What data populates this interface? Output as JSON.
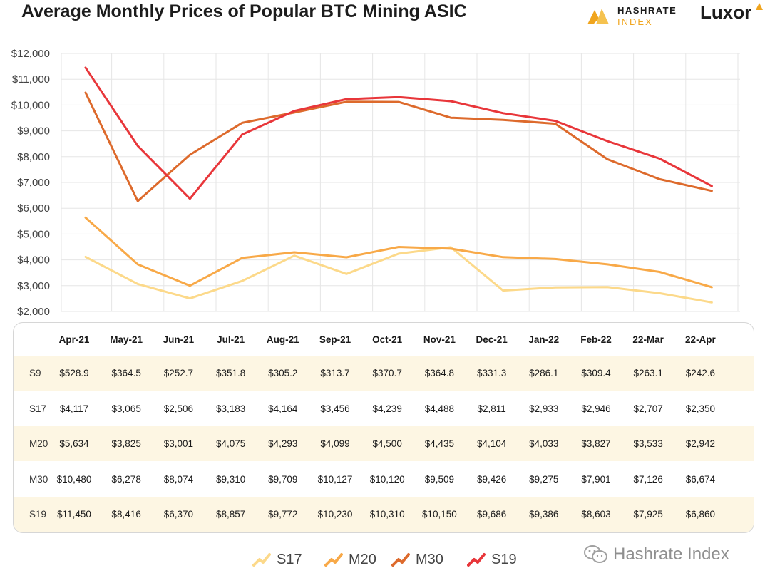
{
  "header": {
    "title": "Average Monthly Prices of Popular BTC Mining ASIC",
    "brand_hashrate_line1": "HASHRATE",
    "brand_hashrate_line2": "INDEX",
    "brand_luxor": "Luxor"
  },
  "colors": {
    "S17": "#fcd98a",
    "M20": "#f8a948",
    "M30": "#dd6a2c",
    "S19": "#e8363a",
    "grid": "#e6e6e6",
    "row_shade": "#fdf6e3"
  },
  "chart_data": {
    "type": "line",
    "title": "Average Monthly Prices of Popular BTC Mining ASIC",
    "xlabel": "",
    "ylabel": "",
    "ylim": [
      2000,
      12000
    ],
    "yticks": [
      2000,
      3000,
      4000,
      5000,
      6000,
      7000,
      8000,
      9000,
      10000,
      11000,
      12000
    ],
    "ytick_labels": [
      "$2,000",
      "$3,000",
      "$4,000",
      "$5,000",
      "$6,000",
      "$7,000",
      "$8,000",
      "$9,000",
      "$10,000",
      "$11,000",
      "$12,000"
    ],
    "grid": true,
    "legend_position": "bottom-center",
    "categories": [
      "Apr-21",
      "May-21",
      "Jun-21",
      "Jul-21",
      "Aug-21",
      "Sep-21",
      "Oct-21",
      "Nov-21",
      "Dec-21",
      "Jan-22",
      "Feb-22",
      "22-Mar",
      "22-Apr"
    ],
    "series": [
      {
        "name": "S17",
        "values": [
          4117,
          3065,
          2506,
          3183,
          4164,
          3456,
          4239,
          4488,
          2811,
          2933,
          2946,
          2707,
          2350
        ]
      },
      {
        "name": "M20",
        "values": [
          5634,
          3825,
          3001,
          4075,
          4293,
          4099,
          4500,
          4435,
          4104,
          4033,
          3827,
          3533,
          2942
        ]
      },
      {
        "name": "M30",
        "values": [
          10480,
          6278,
          8074,
          9310,
          9709,
          10127,
          10120,
          9509,
          9426,
          9275,
          7901,
          7126,
          6674
        ]
      },
      {
        "name": "S19",
        "values": [
          11450,
          8416,
          6370,
          8857,
          9772,
          10230,
          10310,
          10150,
          9686,
          9386,
          8603,
          7925,
          6860
        ]
      }
    ]
  },
  "table": {
    "columns": [
      "Apr-21",
      "May-21",
      "Jun-21",
      "Jul-21",
      "Aug-21",
      "Sep-21",
      "Oct-21",
      "Nov-21",
      "Dec-21",
      "Jan-22",
      "Feb-22",
      "22-Mar",
      "22-Apr"
    ],
    "rows": [
      {
        "name": "S9",
        "cells": [
          "$528.9",
          "$364.5",
          "$252.7",
          "$351.8",
          "$305.2",
          "$313.7",
          "$370.7",
          "$364.8",
          "$331.3",
          "$286.1",
          "$309.4",
          "$263.1",
          "$242.6"
        ]
      },
      {
        "name": "S17",
        "cells": [
          "$4,117",
          "$3,065",
          "$2,506",
          "$3,183",
          "$4,164",
          "$3,456",
          "$4,239",
          "$4,488",
          "$2,811",
          "$2,933",
          "$2,946",
          "$2,707",
          "$2,350"
        ]
      },
      {
        "name": "M20",
        "cells": [
          "$5,634",
          "$3,825",
          "$3,001",
          "$4,075",
          "$4,293",
          "$4,099",
          "$4,500",
          "$4,435",
          "$4,104",
          "$4,033",
          "$3,827",
          "$3,533",
          "$2,942"
        ]
      },
      {
        "name": "M30",
        "cells": [
          "$10,480",
          "$6,278",
          "$8,074",
          "$9,310",
          "$9,709",
          "$10,127",
          "$10,120",
          "$9,509",
          "$9,426",
          "$9,275",
          "$7,901",
          "$7,126",
          "$6,674"
        ]
      },
      {
        "name": "S19",
        "cells": [
          "$11,450",
          "$8,416",
          "$6,370",
          "$8,857",
          "$9,772",
          "$10,230",
          "$10,310",
          "$10,150",
          "$9,686",
          "$9,386",
          "$8,603",
          "$7,925",
          "$6,860"
        ]
      }
    ]
  },
  "legend": [
    "S17",
    "M20",
    "M30",
    "S19"
  ],
  "watermark": "Hashrate Index"
}
